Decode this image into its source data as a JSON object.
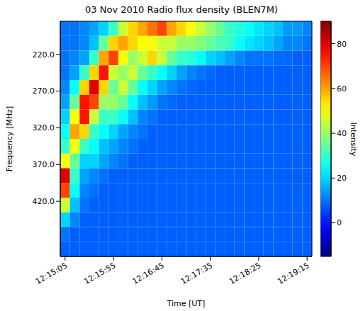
{
  "chart_data": {
    "type": "heatmap",
    "title": "03 Nov 2010 Radio flux density (BLEN7M)",
    "x_label": "Time [UT]",
    "y_label": "Frequency [MHz]",
    "x": [
      44100,
      44110,
      44120,
      44130,
      44140,
      44150,
      44160,
      44170,
      44180,
      44190,
      44200,
      44210,
      44220,
      44230,
      44240,
      44250,
      44260,
      44270,
      44280,
      44290,
      44300,
      44310,
      44320,
      44330,
      44340,
      44350,
      44360
    ],
    "y": [
      175,
      195,
      215,
      235,
      255,
      275,
      295,
      315,
      335,
      355,
      375,
      395,
      415,
      435,
      455,
      475,
      495
    ],
    "cells": [
      [
        10,
        10,
        12,
        15,
        20,
        30,
        45,
        55,
        60,
        65,
        70,
        60,
        55,
        50,
        45,
        40,
        35,
        30,
        28,
        25,
        22,
        20,
        18,
        14,
        14,
        12
      ],
      [
        10,
        10,
        12,
        18,
        35,
        55,
        60,
        55,
        50,
        50,
        45,
        45,
        40,
        40,
        38,
        35,
        32,
        30,
        25,
        22,
        20,
        18,
        15,
        12,
        12,
        10
      ],
      [
        10,
        12,
        15,
        30,
        60,
        70,
        50,
        40,
        45,
        55,
        45,
        35,
        30,
        28,
        25,
        20,
        18,
        15,
        12,
        10,
        10,
        10,
        9,
        9,
        8,
        8
      ],
      [
        10,
        15,
        30,
        55,
        75,
        45,
        40,
        45,
        35,
        30,
        25,
        20,
        15,
        12,
        10,
        9,
        8,
        8,
        8,
        8,
        8,
        8,
        8,
        8,
        8,
        8
      ],
      [
        12,
        25,
        55,
        80,
        55,
        35,
        45,
        35,
        25,
        20,
        15,
        12,
        10,
        9,
        8,
        8,
        8,
        8,
        8,
        8,
        8,
        8,
        8,
        8,
        8,
        8
      ],
      [
        15,
        35,
        75,
        70,
        40,
        40,
        35,
        25,
        18,
        14,
        10,
        9,
        8,
        8,
        8,
        8,
        8,
        8,
        8,
        8,
        8,
        8,
        8,
        8,
        8,
        8
      ],
      [
        20,
        50,
        75,
        45,
        30,
        30,
        25,
        18,
        12,
        10,
        8,
        8,
        8,
        8,
        8,
        8,
        8,
        8,
        8,
        8,
        8,
        8,
        8,
        8,
        8,
        8
      ],
      [
        25,
        60,
        55,
        30,
        25,
        20,
        15,
        12,
        10,
        8,
        8,
        8,
        8,
        8,
        8,
        8,
        8,
        8,
        8,
        8,
        8,
        8,
        8,
        8,
        8,
        8
      ],
      [
        30,
        50,
        30,
        25,
        18,
        15,
        12,
        10,
        8,
        8,
        8,
        8,
        8,
        8,
        8,
        8,
        8,
        8,
        8,
        8,
        8,
        8,
        8,
        8,
        8,
        8
      ],
      [
        50,
        35,
        20,
        20,
        15,
        12,
        10,
        8,
        8,
        8,
        8,
        8,
        8,
        8,
        8,
        8,
        8,
        8,
        8,
        8,
        8,
        8,
        8,
        8,
        8,
        8
      ],
      [
        80,
        30,
        15,
        12,
        10,
        8,
        8,
        8,
        8,
        8,
        8,
        8,
        8,
        8,
        8,
        8,
        8,
        8,
        8,
        8,
        8,
        8,
        8,
        8,
        8,
        8
      ],
      [
        70,
        25,
        12,
        10,
        8,
        8,
        8,
        8,
        8,
        8,
        8,
        8,
        8,
        8,
        8,
        8,
        8,
        8,
        8,
        8,
        8,
        8,
        8,
        8,
        8,
        8
      ],
      [
        45,
        18,
        10,
        8,
        8,
        8,
        8,
        8,
        8,
        8,
        8,
        8,
        8,
        8,
        8,
        8,
        8,
        8,
        8,
        8,
        8,
        8,
        8,
        8,
        8,
        8
      ],
      [
        20,
        12,
        8,
        8,
        8,
        8,
        8,
        8,
        8,
        8,
        8,
        8,
        8,
        8,
        8,
        8,
        8,
        8,
        8,
        8,
        8,
        8,
        8,
        8,
        8,
        8
      ],
      [
        10,
        8,
        8,
        8,
        8,
        8,
        8,
        8,
        8,
        8,
        8,
        8,
        8,
        8,
        8,
        8,
        8,
        8,
        8,
        8,
        8,
        8,
        8,
        8,
        8,
        8
      ],
      [
        8,
        8,
        8,
        8,
        8,
        8,
        8,
        8,
        8,
        8,
        8,
        8,
        8,
        8,
        8,
        8,
        8,
        8,
        8,
        8,
        8,
        8,
        8,
        8,
        8,
        8
      ]
    ],
    "xlim": [
      44100,
      44360
    ],
    "xticks": [
      {
        "value": 44105,
        "label": "12:15:05"
      },
      {
        "value": 44155,
        "label": "12:15:55"
      },
      {
        "value": 44205,
        "label": "12:16:45"
      },
      {
        "value": 44255,
        "label": "12:17:35"
      },
      {
        "value": 44305,
        "label": "12:18:25"
      },
      {
        "value": 44355,
        "label": "12:19:15"
      }
    ],
    "ylim": [
      495,
      175
    ],
    "yticks": [
      {
        "value": 220,
        "label": "220.0"
      },
      {
        "value": 270,
        "label": "270.0"
      },
      {
        "value": 320,
        "label": "320.0"
      },
      {
        "value": 370,
        "label": "370.0"
      },
      {
        "value": 420,
        "label": "420.0"
      }
    ],
    "colorbar": {
      "label": "Intensity",
      "range": [
        -15,
        90
      ],
      "ticks": [
        0,
        20,
        40,
        60,
        80
      ]
    }
  }
}
